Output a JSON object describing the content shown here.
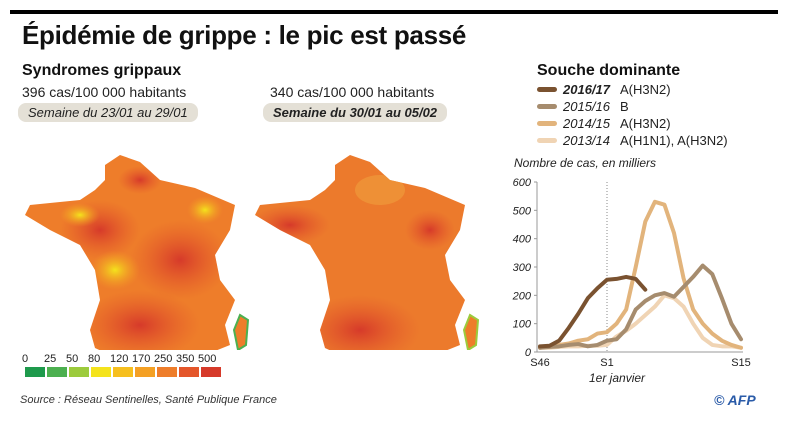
{
  "title": "Épidémie de grippe : le pic est passé",
  "maps": {
    "heading": "Syndromes grippaux",
    "left": {
      "rate": "396 cas/100 000 habitants",
      "week": "Semaine du 23/01 au 29/01"
    },
    "right": {
      "rate": "340 cas/100 000 habitants",
      "week": "Semaine du 30/01 au 05/02"
    },
    "scale": {
      "labels": [
        "0",
        "25",
        "50",
        "80",
        "120",
        "170",
        "250",
        "350",
        "500"
      ],
      "colors": [
        "#1e9a4c",
        "#4cb050",
        "#9ccb3c",
        "#f4e31c",
        "#f6bf1e",
        "#f4a024",
        "#ee7d2a",
        "#e4562a",
        "#d63a2a"
      ]
    }
  },
  "source": "Source : Réseau Sentinelles, Santé Publique France",
  "logo": "© AFP",
  "strains": {
    "heading": "Souche dominante",
    "items": [
      {
        "season": "2016/17",
        "strain": "A(H3N2)",
        "color": "#7a5230"
      },
      {
        "season": "2015/16",
        "strain": "B",
        "color": "#a68c6e"
      },
      {
        "season": "2014/15",
        "strain": "A(H3N2)",
        "color": "#e2b47c"
      },
      {
        "season": "2013/14",
        "strain": "A(H1N1), A(H3N2)",
        "color": "#f0d4b4"
      }
    ]
  },
  "chart_data": {
    "type": "line",
    "ylabel": "Nombre de cas, en milliers",
    "ylim": [
      0,
      600
    ],
    "yticks": [
      "0",
      "100",
      "200",
      "300",
      "400",
      "500",
      "600"
    ],
    "xticks": [
      "S46",
      "S1",
      "S15"
    ],
    "x_annotation": "1er janvier",
    "x_weeks": [
      "S46",
      "S47",
      "S48",
      "S49",
      "S50",
      "S51",
      "S52",
      "S1",
      "S2",
      "S3",
      "S4",
      "S5",
      "S6",
      "S7",
      "S8",
      "S9",
      "S10",
      "S11",
      "S12",
      "S13",
      "S14",
      "S15"
    ],
    "series": [
      {
        "name": "2013/14",
        "values": [
          15,
          15,
          18,
          20,
          20,
          22,
          22,
          25,
          55,
          75,
          100,
          130,
          160,
          200,
          190,
          160,
          100,
          50,
          25,
          20,
          20,
          15
        ]
      },
      {
        "name": "2014/15",
        "values": [
          15,
          20,
          25,
          30,
          40,
          45,
          65,
          70,
          100,
          150,
          300,
          460,
          530,
          520,
          420,
          260,
          150,
          100,
          65,
          40,
          25,
          15
        ]
      },
      {
        "name": "2015/16",
        "values": [
          15,
          18,
          20,
          25,
          28,
          20,
          25,
          40,
          45,
          80,
          150,
          180,
          200,
          208,
          195,
          230,
          265,
          305,
          275,
          190,
          100,
          45
        ]
      },
      {
        "name": "2016/17",
        "values": [
          20,
          22,
          40,
          85,
          135,
          190,
          225,
          255,
          258,
          265,
          258,
          220
        ]
      }
    ]
  }
}
